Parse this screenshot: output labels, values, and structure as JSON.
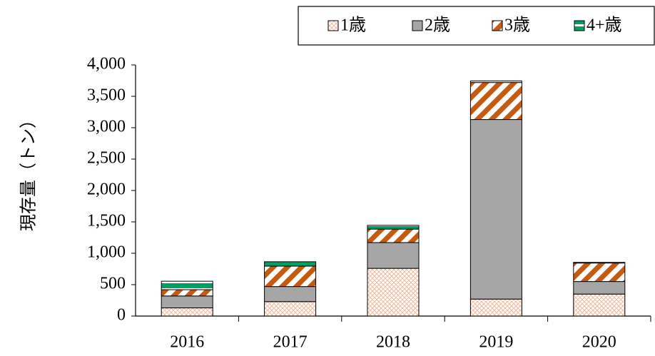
{
  "chart_data": {
    "type": "stacked-bar",
    "y_label": "現存量（トン）",
    "categories": [
      "2016",
      "2017",
      "2018",
      "2019",
      "2020"
    ],
    "series": [
      {
        "name": "1歳",
        "color": "#f4b9a0",
        "pattern": "dots",
        "values": [
          130,
          230,
          760,
          270,
          350
        ]
      },
      {
        "name": "2歳",
        "color": "#a6a6a6",
        "pattern": "solid",
        "values": [
          190,
          240,
          410,
          2860,
          200
        ]
      },
      {
        "name": "3歳",
        "color": "#c55a11",
        "pattern": "diagonal",
        "values": [
          100,
          325,
          215,
          590,
          295
        ]
      },
      {
        "name": "4+歳",
        "color": "#00a060",
        "pattern": "stripe",
        "values": [
          135,
          70,
          60,
          25,
          10
        ]
      }
    ],
    "ylim": [
      0,
      4000
    ],
    "yticks": [
      0,
      500,
      {
        "value": 1000,
        "label": "1,000"
      },
      {
        "value": 1500,
        "label": "1,500"
      },
      {
        "value": 2000,
        "label": "2,000"
      },
      {
        "value": 2500,
        "label": "2,500"
      },
      {
        "value": 3000,
        "label": "3,000"
      },
      {
        "value": 3500,
        "label": "3,500"
      },
      {
        "value": 4000,
        "label": "4,000"
      }
    ],
    "legend": "top-right"
  }
}
